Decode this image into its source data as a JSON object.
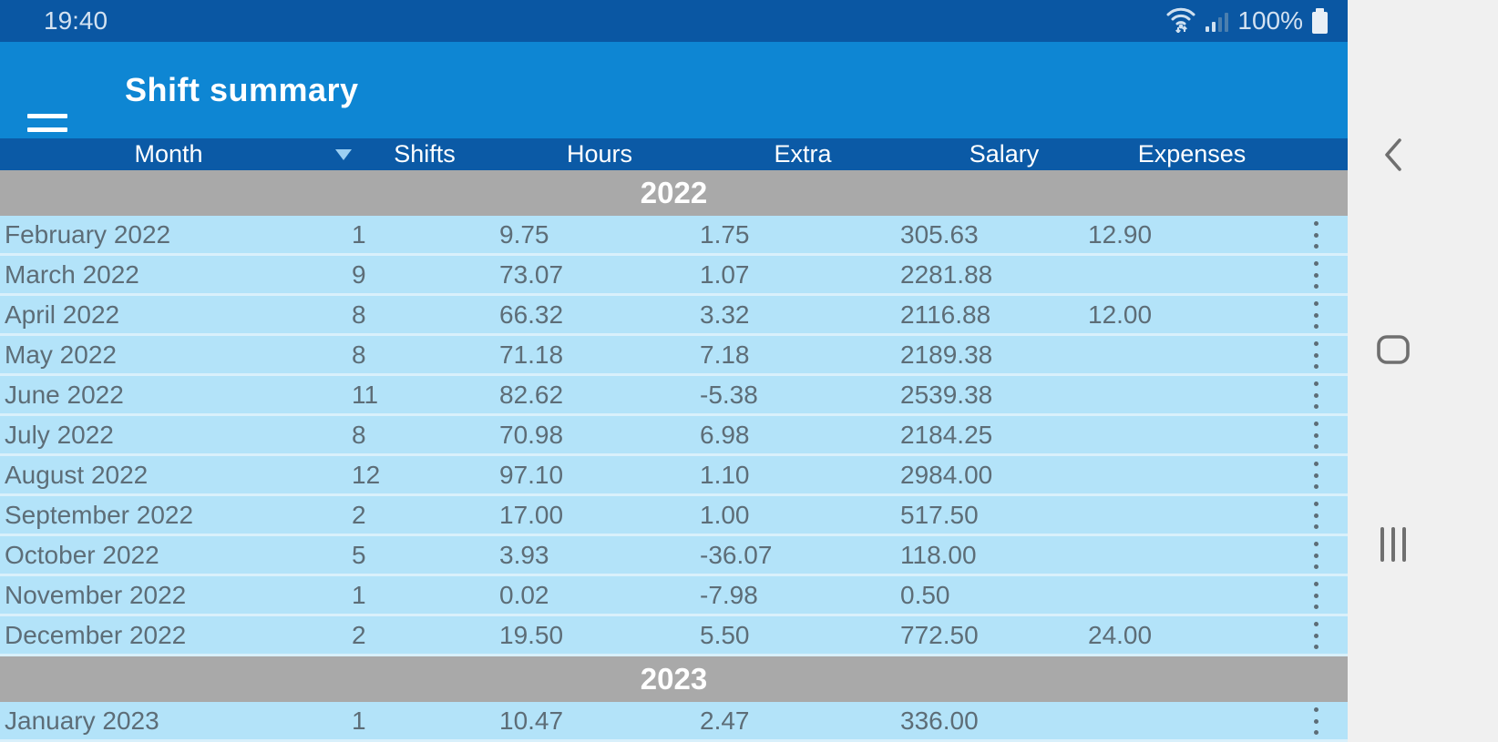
{
  "status_bar": {
    "time": "19:40",
    "battery_percent": "100%"
  },
  "app_bar": {
    "title": "Shift summary"
  },
  "table": {
    "columns": [
      "Month",
      "Shifts",
      "Hours",
      "Extra",
      "Salary",
      "Expenses"
    ],
    "sort": {
      "column": "Month",
      "direction": "desc"
    },
    "sections": [
      {
        "year": "2022",
        "rows": [
          {
            "month": "February 2022",
            "shifts": "1",
            "hours": "9.75",
            "extra": "1.75",
            "salary": "305.63",
            "expenses": "12.90"
          },
          {
            "month": "March 2022",
            "shifts": "9",
            "hours": "73.07",
            "extra": "1.07",
            "salary": "2281.88",
            "expenses": ""
          },
          {
            "month": "April 2022",
            "shifts": "8",
            "hours": "66.32",
            "extra": "3.32",
            "salary": "2116.88",
            "expenses": "12.00"
          },
          {
            "month": "May 2022",
            "shifts": "8",
            "hours": "71.18",
            "extra": "7.18",
            "salary": "2189.38",
            "expenses": ""
          },
          {
            "month": "June 2022",
            "shifts": "11",
            "hours": "82.62",
            "extra": "-5.38",
            "salary": "2539.38",
            "expenses": ""
          },
          {
            "month": "July 2022",
            "shifts": "8",
            "hours": "70.98",
            "extra": "6.98",
            "salary": "2184.25",
            "expenses": ""
          },
          {
            "month": "August 2022",
            "shifts": "12",
            "hours": "97.10",
            "extra": "1.10",
            "salary": "2984.00",
            "expenses": ""
          },
          {
            "month": "September 2022",
            "shifts": "2",
            "hours": "17.00",
            "extra": "1.00",
            "salary": "517.50",
            "expenses": ""
          },
          {
            "month": "October 2022",
            "shifts": "5",
            "hours": "3.93",
            "extra": "-36.07",
            "salary": "118.00",
            "expenses": ""
          },
          {
            "month": "November 2022",
            "shifts": "1",
            "hours": "0.02",
            "extra": "-7.98",
            "salary": "0.50",
            "expenses": ""
          },
          {
            "month": "December 2022",
            "shifts": "2",
            "hours": "19.50",
            "extra": "5.50",
            "salary": "772.50",
            "expenses": "24.00"
          }
        ]
      },
      {
        "year": "2023",
        "rows": [
          {
            "month": "January 2023",
            "shifts": "1",
            "hours": "10.47",
            "extra": "2.47",
            "salary": "336.00",
            "expenses": ""
          }
        ]
      }
    ]
  },
  "icons": {
    "menu": "hamburger-menu",
    "wifi": "wifi-with-traffic-arrows",
    "signal": "cell-signal-bars",
    "battery": "battery-full",
    "sort": "triangle-down",
    "row_menu": "vertical-ellipsis",
    "nav_back": "back-chevron",
    "nav_home": "home-squircle",
    "nav_recents": "recents-bars"
  },
  "colors": {
    "status_bar": "#0a57a3",
    "app_bar": "#0e86d3",
    "table_header": "#0b5aa6",
    "year_band": "#a9a9a9",
    "row_bg": "#b3e3f9",
    "row_separator": "#d9f0fb",
    "row_text": "#5d6d77",
    "nav_bar_bg": "#f0f0f0",
    "nav_icon": "#6f6f6f"
  }
}
